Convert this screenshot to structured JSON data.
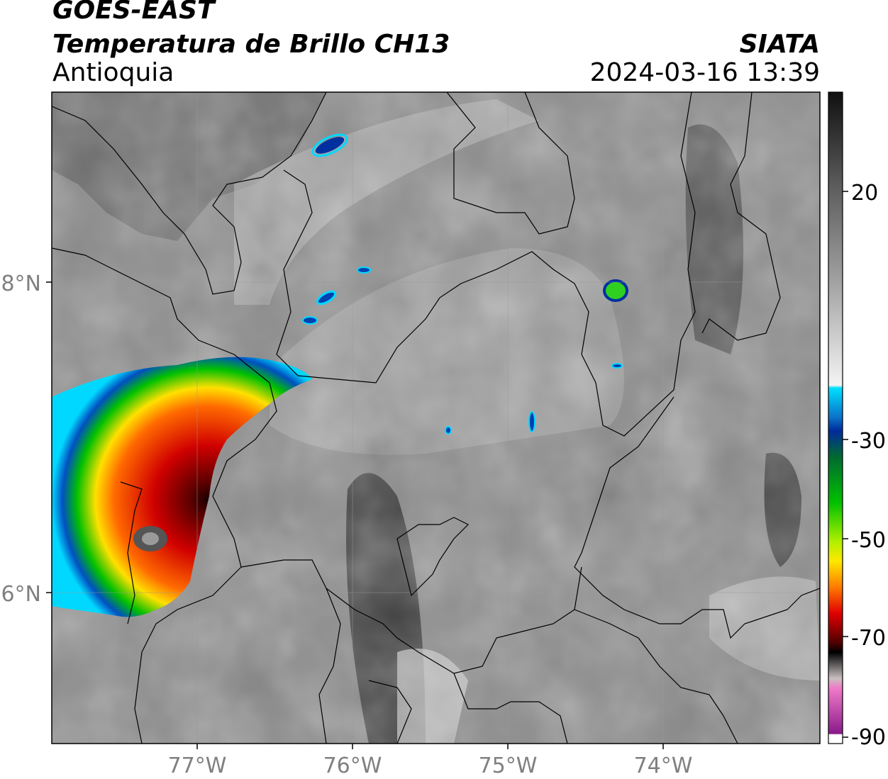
{
  "header": {
    "satellite": "GOES-EAST",
    "product": "Temperatura de Brillo CH13",
    "region": "Antioquia",
    "organization": "SIATA",
    "timestamp": "2024-03-16 13:39"
  },
  "map": {
    "lat_labels": [
      "8°N",
      "6°N"
    ],
    "lon_labels": [
      "77°W",
      "76°W",
      "75°W",
      "74°W"
    ]
  },
  "colorbar": {
    "tick_labels": [
      "20",
      "-30",
      "-50",
      "-70",
      "-90"
    ],
    "colors": {
      "warm_dark": "#1a1a1a",
      "warm_light": "#f2f2f2",
      "cyan": "#00e0ff",
      "blue": "#002a9c",
      "green": "#00c000",
      "yellow": "#ffe800",
      "orange": "#ff7a00",
      "red": "#e00000",
      "dark_red": "#500000",
      "black": "#000000",
      "pink": "#f07ac8",
      "magenta": "#8a1a8a"
    }
  }
}
